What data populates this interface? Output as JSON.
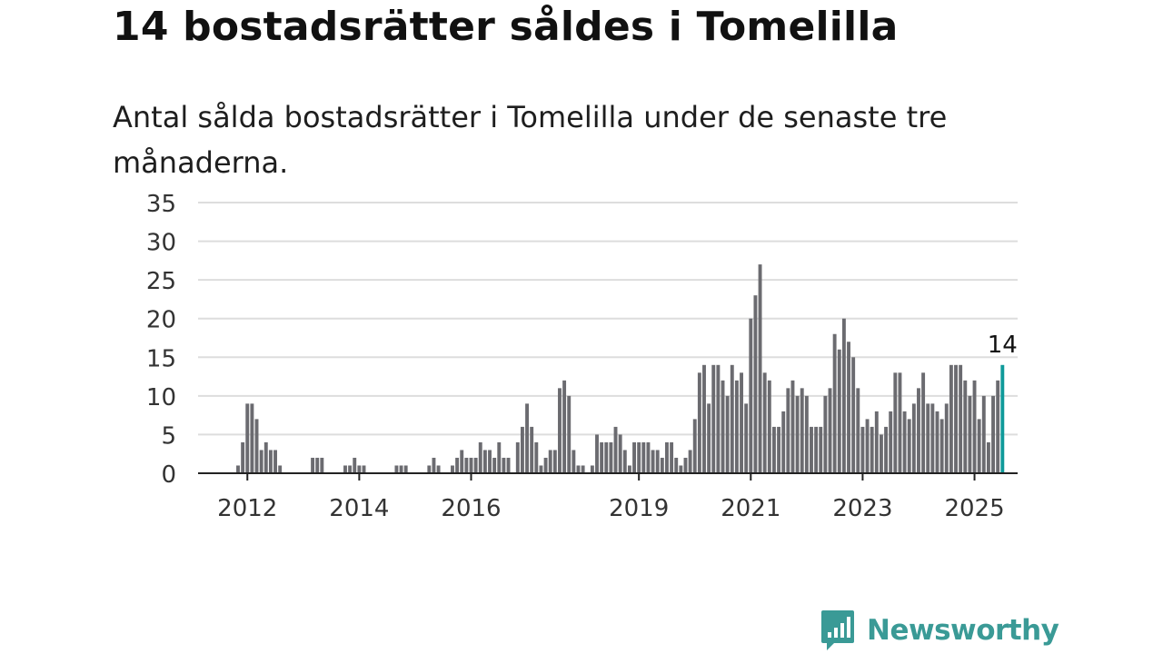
{
  "title": "14 bostadsrätter såldes i Tomelilla",
  "subtitle": "Antal sålda bostadsrätter i Tomelilla under de senaste tre månaderna.",
  "brand": {
    "name": "Newsworthy",
    "icon": "newsworthy-logo-icon"
  },
  "colors": {
    "bar": "#6b6b70",
    "highlight": "#0f9a9a",
    "grid": "#dddddd",
    "axis": "#222222",
    "brand": "#3a9a96"
  },
  "chart_data": {
    "type": "bar",
    "x_unit": "month",
    "x_start": "2011-11",
    "x_end": "2025-03",
    "xticks": [
      "2012",
      "2014",
      "2016",
      "2019",
      "2021",
      "2023",
      "2025"
    ],
    "yticks": [
      0,
      5,
      10,
      15,
      20,
      25,
      30,
      35
    ],
    "ylim": [
      0,
      35
    ],
    "grid": true,
    "highlight_label": "14",
    "values": [
      1,
      4,
      9,
      9,
      7,
      3,
      4,
      3,
      3,
      1,
      0,
      0,
      0,
      0,
      0,
      0,
      2,
      2,
      2,
      0,
      0,
      0,
      0,
      1,
      1,
      2,
      1,
      1,
      0,
      0,
      0,
      0,
      0,
      0,
      1,
      1,
      1,
      0,
      0,
      0,
      0,
      1,
      2,
      1,
      0,
      0,
      1,
      2,
      3,
      2,
      2,
      2,
      4,
      3,
      3,
      2,
      4,
      2,
      2,
      0,
      4,
      6,
      9,
      6,
      4,
      1,
      2,
      3,
      3,
      11,
      12,
      10,
      3,
      1,
      1,
      0,
      1,
      5,
      4,
      4,
      4,
      6,
      5,
      3,
      1,
      4,
      4,
      4,
      4,
      3,
      3,
      2,
      4,
      4,
      2,
      1,
      2,
      3,
      7,
      13,
      14,
      9,
      14,
      14,
      12,
      10,
      14,
      12,
      13,
      9,
      20,
      23,
      27,
      13,
      12,
      6,
      6,
      8,
      11,
      12,
      10,
      11,
      10,
      6,
      6,
      6,
      10,
      11,
      18,
      16,
      20,
      17,
      15,
      11,
      6,
      7,
      6,
      8,
      5,
      6,
      8,
      13,
      13,
      8,
      7,
      9,
      11,
      13,
      9,
      9,
      8,
      7,
      9,
      14,
      14,
      14,
      12,
      10,
      12,
      7,
      10,
      4,
      10,
      12,
      14
    ]
  }
}
